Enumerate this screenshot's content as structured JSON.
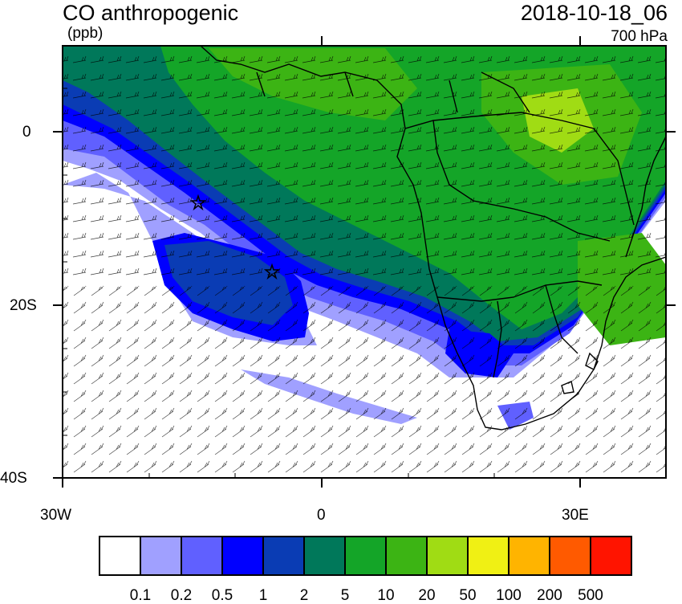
{
  "title": "CO anthropogenic",
  "units": "(ppb)",
  "datetime": "2018-10-18_06",
  "level": "700 hPa",
  "lat_labels": [
    {
      "lat": 0,
      "text": "0"
    },
    {
      "lat": -20,
      "text": "20S"
    },
    {
      "lat": -40,
      "text": "40S"
    }
  ],
  "lon_labels": [
    {
      "lon": -30,
      "text": "30W"
    },
    {
      "lon": 0,
      "text": "0"
    },
    {
      "lon": 30,
      "text": "30E"
    }
  ],
  "colorbar": {
    "colors": [
      "#ffffff",
      "#a0a0ff",
      "#6060ff",
      "#0000ff",
      "#0a3cb4",
      "#00785a",
      "#14a528",
      "#3cb414",
      "#a0dc14",
      "#f0f014",
      "#ffb400",
      "#ff5a00",
      "#ff1400"
    ],
    "labels": [
      "0.1",
      "0.2",
      "0.5",
      "1",
      "2",
      "5",
      "10",
      "20",
      "50",
      "100",
      "200",
      "500"
    ]
  },
  "map_extent": {
    "lon_min": -30,
    "lon_max": 40,
    "lat_min": -40,
    "lat_max": 10
  },
  "markers": [
    "star-marker",
    "star-marker"
  ]
}
